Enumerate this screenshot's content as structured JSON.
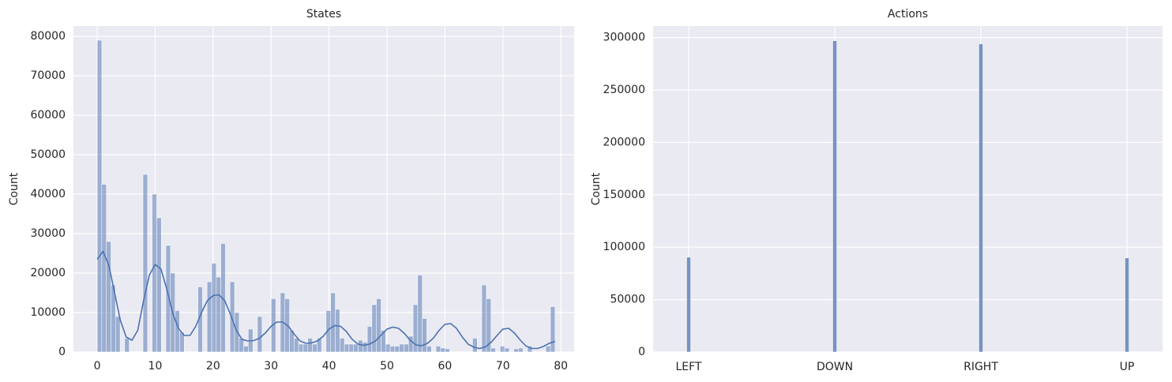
{
  "chart_data": [
    {
      "type": "histogram",
      "title": "States",
      "ylabel": "Count",
      "color": "#4c72b0",
      "grid": true,
      "bins": [
        0,
        0.79,
        1.58,
        2.37,
        3.16,
        3.95,
        4.74,
        5.53,
        6.32,
        7.11,
        7.9,
        8.69,
        9.48,
        10.27,
        11.06,
        11.85,
        12.64,
        13.43,
        14.22,
        15.01,
        15.8,
        16.59,
        17.38,
        18.17,
        18.96,
        19.75,
        20.54,
        21.33,
        22.12,
        22.91,
        23.7,
        24.49,
        25.28,
        26.07,
        26.86,
        27.65,
        28.44,
        29.23,
        30.02,
        30.81,
        31.6,
        32.39,
        33.18,
        33.97,
        34.76,
        35.55,
        36.34,
        37.13,
        37.92,
        38.71,
        39.5,
        40.29,
        41.08,
        41.87,
        42.66,
        43.45,
        44.24,
        45.03,
        45.82,
        46.61,
        47.4,
        48.19,
        48.98,
        49.77,
        50.56,
        51.35,
        52.14,
        52.93,
        53.72,
        54.51,
        55.3,
        56.09,
        56.88,
        57.67,
        58.46,
        59.25,
        60.04,
        60.83,
        61.62,
        62.41,
        63.2,
        63.99,
        64.78,
        65.57,
        66.36,
        67.15,
        67.94,
        68.73,
        69.52,
        70.31,
        71.1,
        71.89,
        72.68,
        73.47,
        74.26,
        75.05,
        75.84,
        76.63,
        77.42,
        78.21,
        79
      ],
      "values": [
        79000,
        42500,
        28000,
        17000,
        9000,
        0,
        3500,
        0,
        0,
        0,
        45000,
        0,
        40000,
        34000,
        0,
        27000,
        20000,
        10500,
        5000,
        0,
        0,
        0,
        16500,
        0,
        17800,
        22500,
        19000,
        27500,
        0,
        17800,
        10000,
        3500,
        1500,
        5800,
        0,
        9000,
        0,
        0,
        13500,
        0,
        15000,
        13500,
        5500,
        3500,
        2000,
        2000,
        3500,
        2000,
        3500,
        0,
        10500,
        15000,
        10800,
        3500,
        2000,
        2000,
        2000,
        3000,
        2500,
        6500,
        12000,
        13500,
        5500,
        2000,
        1500,
        1500,
        2000,
        2000,
        4000,
        12000,
        19500,
        8500,
        1500,
        0,
        1500,
        1000,
        800,
        0,
        0,
        0,
        0,
        0,
        3500,
        0,
        17000,
        13500,
        1000,
        0,
        1500,
        1000,
        0,
        800,
        1000,
        0,
        1500,
        0,
        0,
        0,
        1500,
        11500
      ],
      "line": {
        "color": "#4c72b0",
        "x": [
          0,
          1,
          2,
          3,
          4,
          5,
          6,
          7,
          8,
          9,
          10,
          11,
          12,
          13,
          14,
          15,
          16,
          17,
          18,
          19,
          20,
          21,
          22,
          23,
          24,
          25,
          26,
          27,
          28,
          29,
          30,
          31,
          32,
          33,
          34,
          35,
          36,
          37,
          38,
          39,
          40,
          41,
          42,
          43,
          44,
          45,
          46,
          47,
          48,
          49,
          50,
          51,
          52,
          53,
          54,
          55,
          56,
          57,
          58,
          59,
          60,
          61,
          62,
          63,
          64,
          65,
          66,
          67,
          68,
          69,
          70,
          71,
          72,
          73,
          74,
          75,
          76,
          77,
          78,
          79
        ],
        "values": [
          23500,
          25500,
          22000,
          15000,
          8000,
          3800,
          3000,
          5500,
          13000,
          19500,
          22200,
          21000,
          16000,
          10000,
          6000,
          4200,
          4200,
          6500,
          10000,
          13000,
          14300,
          14500,
          13000,
          9500,
          5500,
          3200,
          2800,
          2900,
          3500,
          4800,
          6500,
          7600,
          7600,
          6500,
          4500,
          2800,
          2200,
          2300,
          2800,
          4000,
          5800,
          6700,
          6500,
          5200,
          3200,
          2000,
          1700,
          2000,
          2800,
          4300,
          5800,
          6300,
          6000,
          4700,
          3000,
          1800,
          1600,
          2200,
          3500,
          5500,
          7000,
          7200,
          6000,
          3800,
          2000,
          1200,
          900,
          1300,
          2500,
          4200,
          5800,
          6000,
          4800,
          3000,
          1500,
          900,
          900,
          1400,
          2200,
          2700
        ]
      },
      "xlim": [
        -4.1,
        82.3
      ],
      "xticks": [
        0,
        10,
        20,
        30,
        40,
        50,
        60,
        70,
        80
      ],
      "ylim": [
        0,
        82600
      ],
      "yticks": [
        0,
        10000,
        20000,
        30000,
        40000,
        50000,
        60000,
        70000,
        80000
      ]
    },
    {
      "type": "bar",
      "title": "Actions",
      "ylabel": "Count",
      "color": "#4c72b0",
      "grid": true,
      "categories": [
        "LEFT",
        "DOWN",
        "RIGHT",
        "UP"
      ],
      "values": [
        90400,
        297000,
        294000,
        89700
      ],
      "ylim": [
        0,
        311000
      ],
      "yticks": [
        0,
        50000,
        100000,
        150000,
        200000,
        250000,
        300000
      ]
    }
  ]
}
